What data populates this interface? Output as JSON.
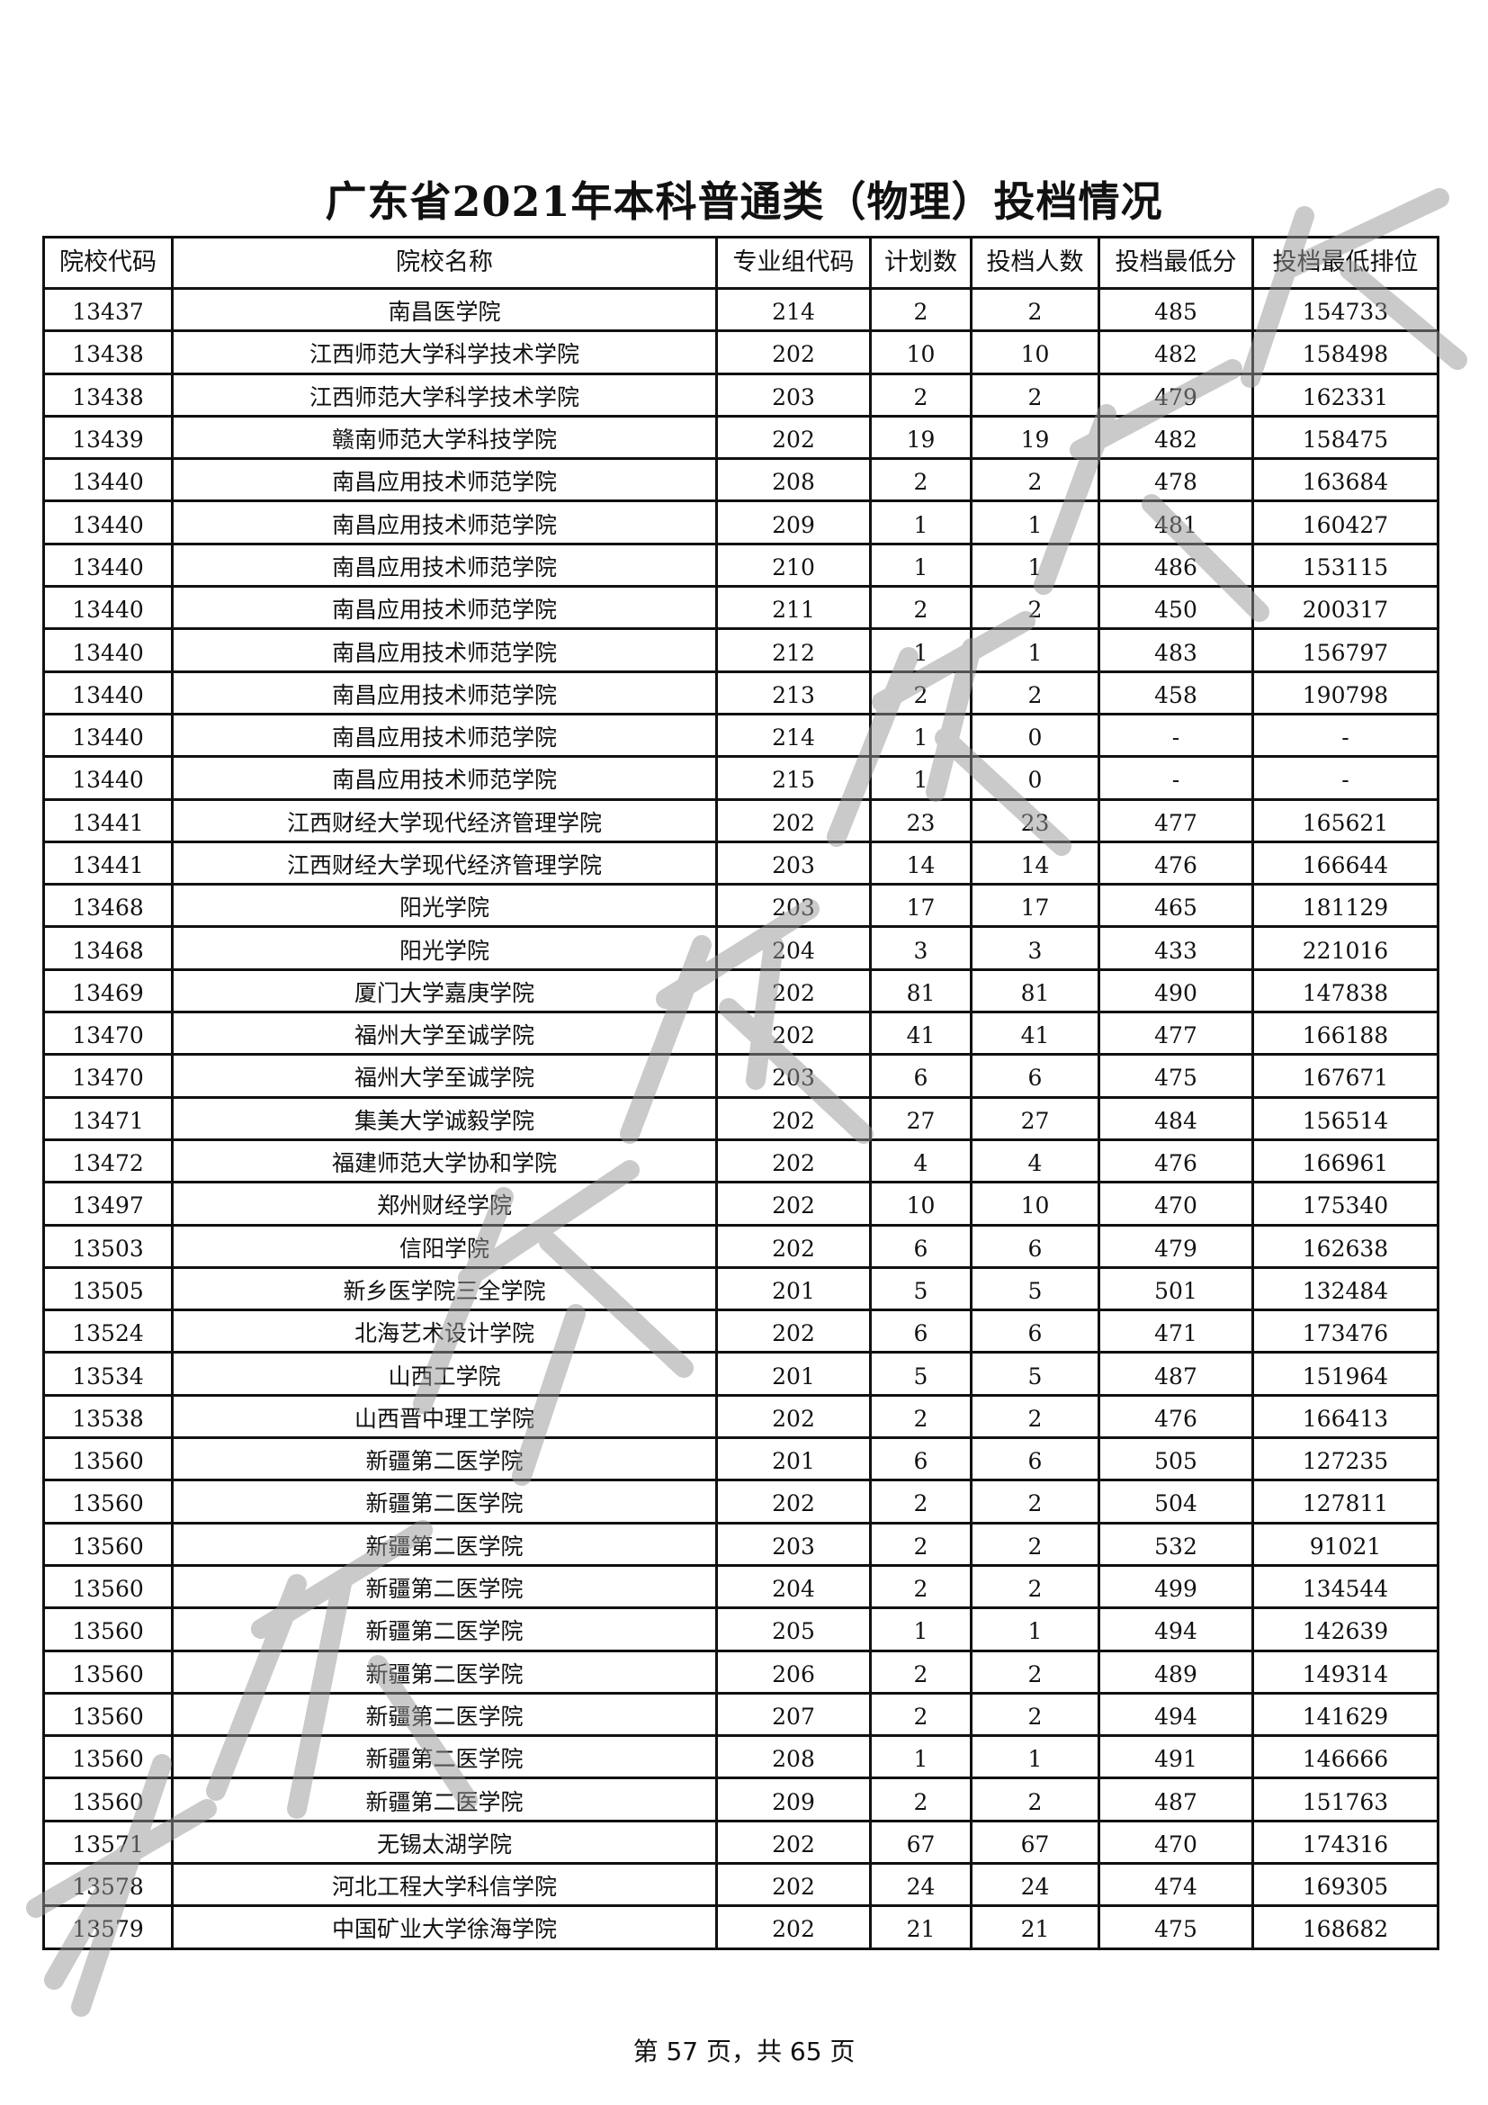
{
  "title": "广东省2021年本科普通类（物理）投档情况",
  "watermark": "广东省教育考试院",
  "headers": [
    "院校代码",
    "院校名称",
    "专业组代码",
    "计划数",
    "投档人数",
    "投档最低分",
    "投档最低排位"
  ],
  "rows": [
    [
      "13437",
      "南昌医学院",
      "214",
      "2",
      "2",
      "485",
      "154733"
    ],
    [
      "13438",
      "江西师范大学科学技术学院",
      "202",
      "10",
      "10",
      "482",
      "158498"
    ],
    [
      "13438",
      "江西师范大学科学技术学院",
      "203",
      "2",
      "2",
      "479",
      "162331"
    ],
    [
      "13439",
      "赣南师范大学科技学院",
      "202",
      "19",
      "19",
      "482",
      "158475"
    ],
    [
      "13440",
      "南昌应用技术师范学院",
      "208",
      "2",
      "2",
      "478",
      "163684"
    ],
    [
      "13440",
      "南昌应用技术师范学院",
      "209",
      "1",
      "1",
      "481",
      "160427"
    ],
    [
      "13440",
      "南昌应用技术师范学院",
      "210",
      "1",
      "1",
      "486",
      "153115"
    ],
    [
      "13440",
      "南昌应用技术师范学院",
      "211",
      "2",
      "2",
      "450",
      "200317"
    ],
    [
      "13440",
      "南昌应用技术师范学院",
      "212",
      "1",
      "1",
      "483",
      "156797"
    ],
    [
      "13440",
      "南昌应用技术师范学院",
      "213",
      "2",
      "2",
      "458",
      "190798"
    ],
    [
      "13440",
      "南昌应用技术师范学院",
      "214",
      "1",
      "0",
      "-",
      "-"
    ],
    [
      "13440",
      "南昌应用技术师范学院",
      "215",
      "1",
      "0",
      "-",
      "-"
    ],
    [
      "13441",
      "江西财经大学现代经济管理学院",
      "202",
      "23",
      "23",
      "477",
      "165621"
    ],
    [
      "13441",
      "江西财经大学现代经济管理学院",
      "203",
      "14",
      "14",
      "476",
      "166644"
    ],
    [
      "13468",
      "阳光学院",
      "203",
      "17",
      "17",
      "465",
      "181129"
    ],
    [
      "13468",
      "阳光学院",
      "204",
      "3",
      "3",
      "433",
      "221016"
    ],
    [
      "13469",
      "厦门大学嘉庚学院",
      "202",
      "81",
      "81",
      "490",
      "147838"
    ],
    [
      "13470",
      "福州大学至诚学院",
      "202",
      "41",
      "41",
      "477",
      "166188"
    ],
    [
      "13470",
      "福州大学至诚学院",
      "203",
      "6",
      "6",
      "475",
      "167671"
    ],
    [
      "13471",
      "集美大学诚毅学院",
      "202",
      "27",
      "27",
      "484",
      "156514"
    ],
    [
      "13472",
      "福建师范大学协和学院",
      "202",
      "4",
      "4",
      "476",
      "166961"
    ],
    [
      "13497",
      "郑州财经学院",
      "202",
      "10",
      "10",
      "470",
      "175340"
    ],
    [
      "13503",
      "信阳学院",
      "202",
      "6",
      "6",
      "479",
      "162638"
    ],
    [
      "13505",
      "新乡医学院三全学院",
      "201",
      "5",
      "5",
      "501",
      "132484"
    ],
    [
      "13524",
      "北海艺术设计学院",
      "202",
      "6",
      "6",
      "471",
      "173476"
    ],
    [
      "13534",
      "山西工学院",
      "201",
      "5",
      "5",
      "487",
      "151964"
    ],
    [
      "13538",
      "山西晋中理工学院",
      "202",
      "2",
      "2",
      "476",
      "166413"
    ],
    [
      "13560",
      "新疆第二医学院",
      "201",
      "6",
      "6",
      "505",
      "127235"
    ],
    [
      "13560",
      "新疆第二医学院",
      "202",
      "2",
      "2",
      "504",
      "127811"
    ],
    [
      "13560",
      "新疆第二医学院",
      "203",
      "2",
      "2",
      "532",
      "91021"
    ],
    [
      "13560",
      "新疆第二医学院",
      "204",
      "2",
      "2",
      "499",
      "134544"
    ],
    [
      "13560",
      "新疆第二医学院",
      "205",
      "1",
      "1",
      "494",
      "142639"
    ],
    [
      "13560",
      "新疆第二医学院",
      "206",
      "2",
      "2",
      "489",
      "149314"
    ],
    [
      "13560",
      "新疆第二医学院",
      "207",
      "2",
      "2",
      "494",
      "141629"
    ],
    [
      "13560",
      "新疆第二医学院",
      "208",
      "1",
      "1",
      "491",
      "146666"
    ],
    [
      "13560",
      "新疆第二医学院",
      "209",
      "2",
      "2",
      "487",
      "151763"
    ],
    [
      "13571",
      "无锡太湖学院",
      "202",
      "67",
      "67",
      "470",
      "174316"
    ],
    [
      "13578",
      "河北工程大学科信学院",
      "202",
      "24",
      "24",
      "474",
      "169305"
    ],
    [
      "13579",
      "中国矿业大学徐海学院",
      "202",
      "21",
      "21",
      "475",
      "168682"
    ]
  ],
  "footer": "第 57 页，共 65 页"
}
